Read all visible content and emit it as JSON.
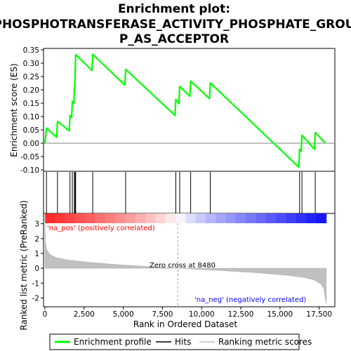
{
  "chart_data": {
    "type": "line",
    "title_lines": [
      "Enrichment plot:",
      "PHOSPHOTRANSFERASE_ACTIVITY_PHOSPHATE_GROU",
      "P_AS_ACCEPTOR"
    ],
    "xlabel": "Rank in Ordered Dataset",
    "es_panel": {
      "ylabel": "Enrichment score (ES)",
      "ylim": [
        -0.1,
        0.35
      ],
      "yticks": [
        "0.35",
        "0.30",
        "0.25",
        "0.20",
        "0.15",
        "0.10",
        "0.05",
        "0.00",
        "-0.05",
        "-0.10"
      ],
      "grid": false,
      "series": [
        {
          "name": "Enrichment profile",
          "color": "#00ff00",
          "x": [
            0,
            100,
            750,
            800,
            1550,
            1600,
            1700,
            1750,
            1850,
            1880,
            1900,
            1930,
            1960,
            3000,
            3050,
            5100,
            5150,
            8300,
            8350,
            8550,
            8600,
            9250,
            9300,
            10500,
            10550,
            16200,
            16250,
            16350,
            16400,
            17200,
            17250,
            17900
          ],
          "y": [
            0.0,
            0.057,
            0.022,
            0.082,
            0.046,
            0.104,
            0.097,
            0.158,
            0.15,
            0.21,
            0.205,
            0.27,
            0.332,
            0.273,
            0.333,
            0.218,
            0.277,
            0.104,
            0.164,
            0.148,
            0.213,
            0.176,
            0.233,
            0.167,
            0.226,
            -0.09,
            -0.023,
            -0.03,
            0.03,
            -0.023,
            0.04,
            0.0
          ]
        }
      ]
    },
    "hits": {
      "name": "Hits",
      "color": "#000000",
      "x": [
        100,
        800,
        1600,
        1750,
        1880,
        1930,
        1960,
        3050,
        5150,
        8350,
        8600,
        9300,
        10550,
        16250,
        16400,
        17250
      ]
    },
    "metric_panel": {
      "ylabel": "Ranked list metric (PreRanked)",
      "ylim": [
        -2.5,
        3.6
      ],
      "yticks": [
        "3",
        "2",
        "1",
        "0",
        "-1",
        "-2"
      ],
      "xticks": [
        "0",
        "2,500",
        "5,000",
        "7,500",
        "10,000",
        "12,500",
        "15,000",
        "17,500"
      ],
      "xlim": [
        0,
        18500
      ],
      "n_ranks": 17950,
      "zero_cross": 8480,
      "pos_label": "'na_pos' (positively correlated)",
      "neg_label": "'na_neg' (negatively correlated)",
      "zero_label": "Zero cross at 8480",
      "series": [
        {
          "name": "Ranking metric scores",
          "color": "#c0c0c0",
          "x": [
            0,
            30,
            100,
            300,
            700,
            1500,
            3000,
            5000,
            8480,
            11000,
            13500,
            15500,
            16500,
            17200,
            17600,
            17800,
            17950
          ],
          "y": [
            3.6,
            1.8,
            1.3,
            0.95,
            0.72,
            0.55,
            0.38,
            0.22,
            0.0,
            -0.14,
            -0.3,
            -0.48,
            -0.62,
            -0.8,
            -1.05,
            -1.4,
            -2.4
          ]
        }
      ]
    },
    "legend": {
      "placement": "bottom",
      "items": [
        {
          "label": "Enrichment profile",
          "color": "#00ff00"
        },
        {
          "label": "Hits",
          "color": "#000000"
        },
        {
          "label": "Ranking metric scores",
          "color": "#c0c0c0"
        }
      ]
    }
  }
}
